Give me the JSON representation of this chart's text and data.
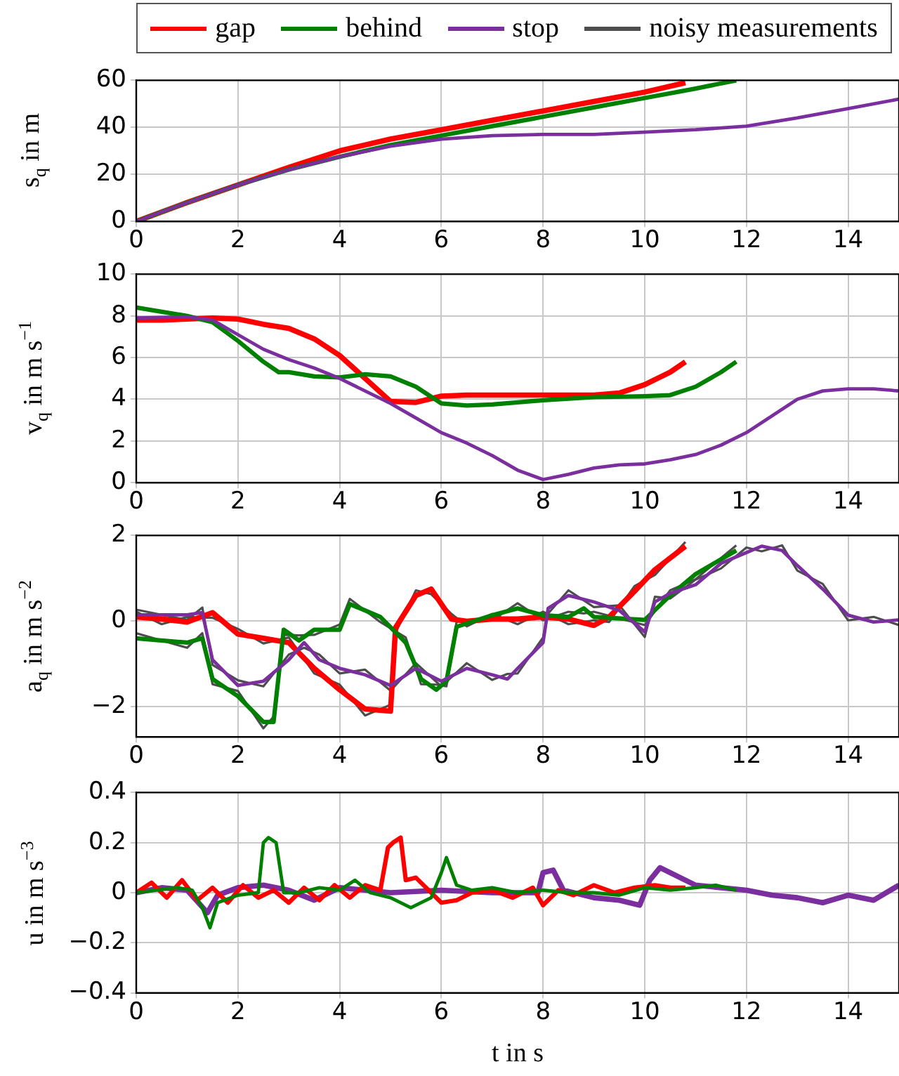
{
  "chart_data": [
    {
      "type": "line",
      "ylabel": "s$_{q}$ in m",
      "xlim": [
        0,
        15
      ],
      "xticks": [
        0,
        2,
        4,
        6,
        8,
        10,
        12,
        14
      ],
      "ylim": [
        0,
        60
      ],
      "yticks": [
        0,
        20,
        40,
        60
      ],
      "grid": true,
      "legend": "top",
      "series": [
        {
          "name": "gap",
          "color": "#ff0000",
          "x": [
            0,
            1,
            2,
            3,
            4,
            5,
            6,
            7,
            8,
            9,
            10,
            10.8
          ],
          "values": [
            0,
            8,
            15.5,
            23,
            30,
            35,
            39,
            43,
            47,
            51,
            55,
            59
          ]
        },
        {
          "name": "behind",
          "color": "#008000",
          "x": [
            0,
            1,
            2,
            3,
            4,
            5,
            6,
            7,
            8,
            9,
            10,
            11,
            11.8
          ],
          "values": [
            0,
            8,
            15.5,
            22,
            27.5,
            32.5,
            36.5,
            40.5,
            44.5,
            48.5,
            52.5,
            56.5,
            60
          ]
        },
        {
          "name": "stop",
          "color": "#7b2f9e",
          "x": [
            0,
            1,
            2,
            3,
            4,
            5,
            6,
            7,
            8,
            9,
            10,
            11,
            12,
            13,
            14,
            15
          ],
          "values": [
            0,
            8,
            15.5,
            22,
            27.5,
            32,
            35,
            36.5,
            37,
            37,
            38,
            39,
            40.5,
            44,
            48,
            52
          ]
        }
      ]
    },
    {
      "type": "line",
      "ylabel": "v$_{q}$ in m s$^{−1}$",
      "xlim": [
        0,
        15
      ],
      "xticks": [
        0,
        2,
        4,
        6,
        8,
        10,
        12,
        14
      ],
      "ylim": [
        0,
        10
      ],
      "yticks": [
        0,
        2,
        4,
        6,
        8,
        10
      ],
      "grid": true,
      "series": [
        {
          "name": "gap",
          "color": "#ff0000",
          "x": [
            0,
            0.5,
            1,
            1.5,
            2,
            2.5,
            3,
            3.5,
            4,
            4.5,
            5,
            5.5,
            6,
            6.5,
            7,
            8,
            9,
            9.5,
            10,
            10.5,
            10.8
          ],
          "values": [
            7.8,
            7.8,
            7.85,
            7.9,
            7.85,
            7.6,
            7.4,
            6.9,
            6.1,
            5.0,
            3.9,
            3.85,
            4.15,
            4.2,
            4.2,
            4.2,
            4.2,
            4.3,
            4.7,
            5.3,
            5.8
          ]
        },
        {
          "name": "behind",
          "color": "#008000",
          "x": [
            0,
            0.5,
            1,
            1.5,
            2,
            2.5,
            2.8,
            3,
            3.5,
            4,
            4.5,
            5,
            5.5,
            6,
            6.5,
            7,
            8,
            9,
            10,
            10.5,
            11,
            11.5,
            11.8
          ],
          "values": [
            8.4,
            8.2,
            8.0,
            7.7,
            6.8,
            5.8,
            5.3,
            5.3,
            5.1,
            5.05,
            5.2,
            5.1,
            4.6,
            3.8,
            3.7,
            3.75,
            3.95,
            4.1,
            4.15,
            4.2,
            4.6,
            5.3,
            5.8
          ]
        },
        {
          "name": "stop",
          "color": "#7b2f9e",
          "x": [
            0,
            1,
            1.5,
            2,
            2.5,
            3,
            3.5,
            4,
            4.5,
            5,
            5.5,
            6,
            6.5,
            7,
            7.5,
            8,
            8.5,
            9,
            9.5,
            10,
            10.5,
            11,
            11.5,
            12,
            12.5,
            13,
            13.5,
            14,
            14.5,
            15
          ],
          "values": [
            7.9,
            7.95,
            7.8,
            7.1,
            6.4,
            5.9,
            5.5,
            5.0,
            4.4,
            3.8,
            3.1,
            2.4,
            1.9,
            1.3,
            0.6,
            0.15,
            0.4,
            0.7,
            0.85,
            0.9,
            1.1,
            1.35,
            1.8,
            2.4,
            3.2,
            4.0,
            4.4,
            4.5,
            4.5,
            4.4
          ]
        }
      ]
    },
    {
      "type": "line",
      "ylabel": "a$_{q}$ in m s$^{−2}$",
      "xlim": [
        0,
        15
      ],
      "xticks": [
        0,
        2,
        4,
        6,
        8,
        10,
        12,
        14
      ],
      "ylim": [
        -2.7,
        2
      ],
      "yticks": [
        {
          "value": -2,
          "label": "−2"
        },
        0,
        2
      ],
      "grid": true,
      "series": [
        {
          "name": "noisy measurements",
          "color": "#4d4d4d",
          "x": [
            0,
            0.5,
            1,
            1.5,
            2,
            2.5,
            3,
            3.5,
            4,
            4.5,
            5,
            5.1,
            5.5,
            5.8,
            6.2,
            6.5,
            7,
            7.5,
            8,
            8.5,
            9,
            9.3,
            9.8,
            10.2,
            10.8
          ],
          "values": [
            0.22,
            -0.07,
            0.1,
            0.08,
            -0.18,
            -0.52,
            -0.38,
            -1.22,
            -1.48,
            -2.2,
            -1.95,
            -0.27,
            0.72,
            0.63,
            0.17,
            -0.12,
            0.17,
            -0.07,
            0.22,
            -0.07,
            0.02,
            -0.02,
            0.82,
            1.08,
            1.85
          ]
        },
        {
          "color": "#4d4d4d",
          "x": [
            0,
            1,
            1.3,
            1.5,
            2,
            2.5,
            2.7,
            2.9,
            3.2,
            3.5,
            4,
            4.2,
            4.8,
            5.3,
            5.6,
            5.9,
            6.1,
            6.3,
            7,
            7.5,
            8,
            8.5,
            8.8,
            9,
            10,
            10.5,
            11,
            11.8
          ],
          "values": [
            -0.28,
            -0.62,
            -0.28,
            -1.47,
            -1.63,
            -2.5,
            -2.23,
            -0.32,
            -0.33,
            -0.32,
            -0.08,
            0.52,
            -0.02,
            -0.38,
            -1.47,
            -1.48,
            -1.52,
            -0.01,
            0.02,
            0.42,
            0.02,
            0.22,
            0.18,
            0.22,
            -0.09,
            0.72,
            0.98,
            1.77
          ]
        },
        {
          "color": "#4d4d4d",
          "x": [
            0,
            1,
            1.3,
            1.5,
            2,
            2.5,
            3,
            3.3,
            3.6,
            4,
            4.5,
            5,
            5.5,
            6,
            6.5,
            7,
            7.3,
            7.5,
            8,
            8.1,
            8.5,
            9,
            9.5,
            10,
            10.2,
            10.5,
            11,
            11.5,
            12,
            12.3,
            12.7,
            13,
            13.5,
            14,
            14.5,
            15
          ],
          "values": [
            0.27,
            0.03,
            0.32,
            -1.02,
            -1.38,
            -1.52,
            -0.78,
            -0.62,
            -0.78,
            -1.22,
            -1.13,
            -1.62,
            -0.98,
            -1.52,
            -0.98,
            -1.37,
            -1.23,
            -1.22,
            -0.38,
            0.18,
            0.72,
            0.33,
            0.37,
            -0.37,
            0.57,
            0.53,
            0.97,
            1.23,
            1.72,
            1.63,
            1.77,
            1.18,
            0.87,
            0.02,
            0.1,
            -0.09
          ]
        },
        {
          "name": "gap",
          "color": "#ff0000",
          "x": [
            0,
            0.5,
            1,
            1.5,
            2,
            2.5,
            3,
            3.5,
            4,
            4.5,
            5,
            5.1,
            5.5,
            5.8,
            6.2,
            6.5,
            7,
            7.5,
            8,
            8.5,
            9,
            9.3,
            9.8,
            10.2,
            10.8
          ],
          "values": [
            0.1,
            0.05,
            -0.02,
            0.2,
            -0.3,
            -0.4,
            -0.5,
            -1.1,
            -1.6,
            -2.05,
            -2.1,
            -0.15,
            0.6,
            0.75,
            0.05,
            0.0,
            0.05,
            0.05,
            0.1,
            0.05,
            -0.1,
            0.1,
            0.7,
            1.2,
            1.75
          ]
        },
        {
          "name": "behind",
          "color": "#008000",
          "x": [
            0,
            1,
            1.3,
            1.5,
            2,
            2.5,
            2.7,
            2.9,
            3.2,
            3.5,
            4,
            4.2,
            4.8,
            5.3,
            5.6,
            5.9,
            6.1,
            6.3,
            7,
            7.5,
            8,
            8.5,
            8.8,
            9,
            10,
            10.5,
            11,
            11.8
          ],
          "values": [
            -0.4,
            -0.5,
            -0.4,
            -1.35,
            -1.75,
            -2.35,
            -2.35,
            -0.2,
            -0.45,
            -0.2,
            -0.2,
            0.4,
            0.1,
            -0.5,
            -1.35,
            -1.6,
            -1.4,
            -0.13,
            0.14,
            0.3,
            0.14,
            0.1,
            0.3,
            0.1,
            0.03,
            0.6,
            1.1,
            1.65
          ]
        },
        {
          "name": "stop",
          "color": "#7b2f9e",
          "x": [
            0,
            1,
            1.3,
            1.5,
            2,
            2.5,
            3,
            3.3,
            3.6,
            4,
            4.5,
            5,
            5.5,
            6,
            6.5,
            7,
            7.3,
            7.5,
            8,
            8.1,
            8.5,
            9,
            9.5,
            10,
            10.2,
            10.5,
            11,
            11.5,
            12,
            12.3,
            12.7,
            13,
            13.5,
            14,
            14.5,
            15
          ],
          "values": [
            0.15,
            0.15,
            0.2,
            -0.9,
            -1.5,
            -1.4,
            -0.9,
            -0.5,
            -0.9,
            -1.1,
            -1.25,
            -1.5,
            -1.1,
            -1.4,
            -1.1,
            -1.25,
            -1.35,
            -1.1,
            -0.5,
            0.3,
            0.6,
            0.45,
            0.25,
            -0.25,
            0.45,
            0.65,
            0.85,
            1.35,
            1.6,
            1.75,
            1.65,
            1.3,
            0.75,
            0.14,
            -0.02,
            0.03
          ]
        }
      ]
    },
    {
      "type": "line",
      "xlabel": "t in s",
      "ylabel": "u in m s$^{−3}$",
      "xlim": [
        0,
        15
      ],
      "xticks": [
        0,
        2,
        4,
        6,
        8,
        10,
        12,
        14
      ],
      "ylim": [
        -0.4,
        0.4
      ],
      "yticks": [
        {
          "value": -0.4,
          "label": "−0.4"
        },
        {
          "value": -0.2,
          "label": "−0.2"
        },
        0,
        0.2,
        0.4
      ],
      "grid": true,
      "series": [
        {
          "name": "stop",
          "color": "#7b2f9e",
          "x": [
            0,
            0.5,
            1,
            1.4,
            1.6,
            2,
            2.5,
            3,
            3.5,
            4,
            5,
            6,
            7,
            7.9,
            8,
            8.2,
            8.4,
            9,
            9.5,
            9.9,
            10.1,
            10.3,
            11,
            12,
            12.5,
            13,
            13.5,
            14,
            14.5,
            15
          ],
          "values": [
            0,
            0.02,
            0.01,
            -0.08,
            -0.01,
            0.02,
            0.03,
            0.01,
            -0.03,
            0.02,
            0,
            0.01,
            0,
            0,
            0.08,
            0.09,
            0.01,
            -0.02,
            -0.03,
            -0.05,
            0.05,
            0.1,
            0.03,
            0.01,
            -0.01,
            -0.02,
            -0.04,
            -0.01,
            -0.03,
            0.03
          ]
        },
        {
          "name": "gap",
          "color": "#ff0000",
          "x": [
            0,
            0.3,
            0.6,
            0.9,
            1.2,
            1.5,
            1.8,
            2.1,
            2.4,
            2.7,
            3,
            3.3,
            3.6,
            3.9,
            4.2,
            4.5,
            4.8,
            4.95,
            5.05,
            5.2,
            5.3,
            5.5,
            5.7,
            6,
            6.3,
            6.6,
            7,
            7.4,
            7.8,
            8,
            8.3,
            8.6,
            9,
            9.4,
            9.8,
            10.2,
            10.5,
            10.8
          ],
          "values": [
            0,
            0.04,
            -0.02,
            0.05,
            -0.03,
            0.02,
            -0.04,
            0.03,
            -0.02,
            0.01,
            -0.04,
            0.02,
            -0.03,
            0.03,
            -0.02,
            0.03,
            0.01,
            0.18,
            0.2,
            0.22,
            0.05,
            0.06,
            0.02,
            -0.04,
            -0.03,
            0,
            0.01,
            -0.02,
            0.02,
            -0.05,
            0.01,
            -0.01,
            0.03,
            0,
            0.02,
            0.03,
            0.02,
            0.02
          ]
        },
        {
          "name": "behind",
          "color": "#008000",
          "x": [
            0,
            0.4,
            0.8,
            1.1,
            1.3,
            1.45,
            1.6,
            2,
            2.4,
            2.5,
            2.6,
            2.75,
            2.9,
            3.2,
            3.6,
            4,
            4.3,
            4.6,
            5,
            5.4,
            5.8,
            6,
            6.1,
            6.3,
            6.6,
            7,
            7.5,
            8,
            8.5,
            9,
            9.5,
            10,
            10.5,
            11,
            11.4,
            11.8
          ],
          "values": [
            0,
            0.01,
            0.02,
            0.01,
            -0.06,
            -0.14,
            -0.04,
            -0.01,
            0,
            0.2,
            0.22,
            0.2,
            0,
            0,
            0.02,
            0.01,
            0.05,
            0,
            -0.02,
            -0.06,
            -0.02,
            0.08,
            0.14,
            0.03,
            0.01,
            0.02,
            0,
            0.01,
            0,
            0,
            -0.01,
            0.02,
            0.01,
            0.02,
            0.03,
            0.01
          ]
        }
      ]
    }
  ]
}
